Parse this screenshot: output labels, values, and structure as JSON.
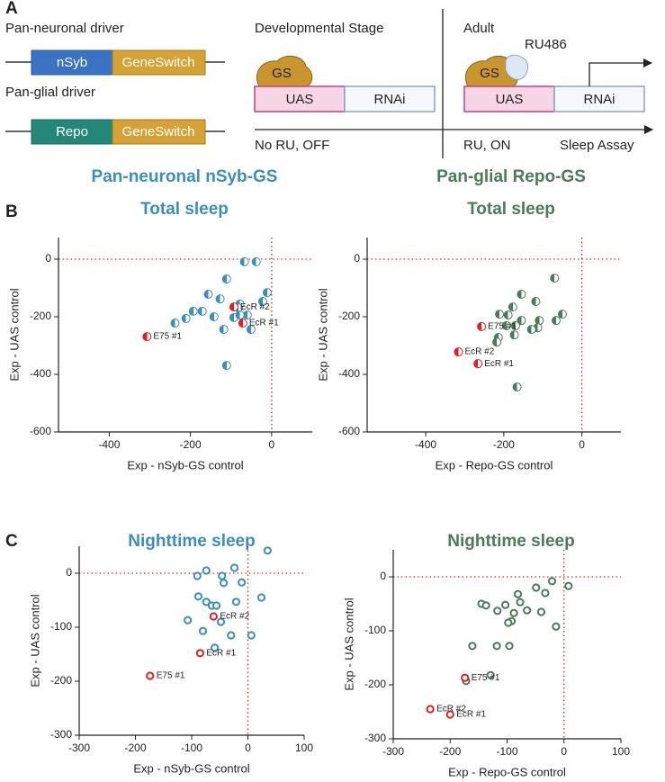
{
  "panel_labels": [
    "A",
    "B",
    "C"
  ],
  "diagram": {
    "drivers": [
      {
        "label": "Pan-neuronal driver",
        "promoter": "nSyb",
        "switch": "GeneSwitch"
      },
      {
        "label": "Pan-glial driver",
        "promoter": "Repo",
        "switch": "GeneSwitch"
      }
    ],
    "stages": [
      {
        "title": "Developmental Stage",
        "activator": "GS",
        "promoter": "UAS",
        "target": "RNAi",
        "condition": "No RU, OFF"
      },
      {
        "title": "Adult",
        "ligand": "RU486",
        "activator": "GS",
        "promoter": "UAS",
        "target": "RNAi",
        "condition": "RU, ON",
        "assay": "Sleep Assay"
      }
    ]
  },
  "column_headers": [
    "Pan-neuronal nSyb-GS",
    "Pan-glial Repo-GS"
  ],
  "chart_data": [
    {
      "type": "scatter",
      "title": "Total sleep",
      "x_label": "Exp - nSyb-GS control",
      "y_label": "Exp - UAS control",
      "xlim": [
        -525,
        100
      ],
      "ylim": [
        -600,
        75
      ],
      "xticks": [
        -400,
        -200,
        0
      ],
      "yticks": [
        0,
        -200,
        -400,
        -600
      ],
      "color": "#3b8fb8",
      "marker": "half-filled",
      "reference_x": 0,
      "reference_y": 0,
      "reference_color": "#e02020",
      "points": {
        "x": [
          -67,
          -38,
          -111,
          -156,
          -22,
          -11,
          -78,
          -127,
          -193,
          -171,
          -82,
          -60,
          -93,
          -78,
          -142,
          -211,
          -238,
          -118,
          -51,
          -111
        ],
        "y": [
          -9,
          -9,
          -69,
          -122,
          -147,
          -116,
          -156,
          -138,
          -181,
          -181,
          -169,
          -194,
          -203,
          -194,
          -200,
          -206,
          -222,
          -244,
          -244,
          -369
        ]
      },
      "highlights": {
        "color": "#e02020",
        "labels": [
          "EcR #2",
          "EcR #1",
          "E75 #1"
        ],
        "x": [
          -93,
          -71,
          -307
        ],
        "y": [
          -166,
          -222,
          -269
        ]
      }
    },
    {
      "type": "scatter",
      "title": "Total sleep",
      "x_label": "Exp - Repo-GS control",
      "y_label": "Exp - UAS control",
      "xlim": [
        -550,
        100
      ],
      "ylim": [
        -600,
        75
      ],
      "xticks": [
        -400,
        -200,
        0
      ],
      "yticks": [
        0,
        -200,
        -400,
        -600
      ],
      "color": "#4a7c59",
      "marker": "half-filled",
      "reference_x": 0,
      "reference_y": 0,
      "reference_color": "#e02020",
      "points": {
        "x": [
          -70,
          -155,
          -118,
          -50,
          -66,
          -177,
          -211,
          -189,
          -109,
          -155,
          -193,
          -170,
          -113,
          -129,
          -173,
          -214,
          -218,
          -166
        ],
        "y": [
          -66,
          -122,
          -147,
          -191,
          -213,
          -166,
          -191,
          -194,
          -213,
          -213,
          -231,
          -231,
          -238,
          -244,
          -263,
          -272,
          -288,
          -444
        ]
      },
      "highlights": {
        "color": "#e02020",
        "labels": [
          "E75 #1",
          "EcR #2",
          "EcR #1"
        ],
        "x": [
          -257,
          -316,
          -266
        ],
        "y": [
          -234,
          -322,
          -363
        ]
      }
    },
    {
      "type": "scatter",
      "title": "Nighttime sleep",
      "x_label": "Exp - nSyb-GS control",
      "y_label": "Exp - UAS control",
      "xlim": [
        -300,
        100
      ],
      "ylim": [
        -300,
        50
      ],
      "xticks": [
        -300,
        -200,
        -100,
        0,
        100
      ],
      "yticks": [
        0,
        -100,
        -200,
        -300
      ],
      "color": "#3b8fb8",
      "marker": "open",
      "reference_x": 0,
      "reference_y": 0,
      "reference_color": "#e02020",
      "points": {
        "x": [
          35,
          -24,
          -74,
          -90,
          -46,
          -11,
          -43,
          -88,
          -74,
          -64,
          -56,
          -21,
          24,
          -107,
          -48,
          -80,
          6,
          -30,
          -59
        ],
        "y": [
          42,
          10,
          5,
          -5,
          -5,
          -17,
          -18,
          -43,
          -53,
          -60,
          -60,
          -53,
          -45,
          -87,
          -90,
          -107,
          -115,
          -115,
          -138
        ]
      },
      "highlights": {
        "color": "#e02020",
        "labels": [
          "EcR #2",
          "EcR #1",
          "E75 #1"
        ],
        "x": [
          -61,
          -85,
          -174
        ],
        "y": [
          -80,
          -148,
          -190
        ]
      }
    },
    {
      "type": "scatter",
      "title": "Nighttime sleep",
      "x_label": "Exp - Repo-GS control",
      "y_label": "Exp - UAS control",
      "xlim": [
        -300,
        100
      ],
      "ylim": [
        -300,
        50
      ],
      "xticks": [
        -300,
        -200,
        -100,
        0,
        100
      ],
      "yticks": [
        0,
        -100,
        -200,
        -300
      ],
      "color": "#4a7c59",
      "marker": "open",
      "reference_x": 0,
      "reference_y": 0,
      "reference_color": "#e02020",
      "points": {
        "x": [
          -21,
          -49,
          -103,
          -145,
          -81,
          -77,
          -33,
          8,
          -40,
          -65,
          -88,
          -117,
          -92,
          -137,
          -98,
          -14,
          -118,
          -96,
          -161,
          -129,
          -172
        ],
        "y": [
          -8,
          -20,
          -52,
          -50,
          -32,
          -47,
          -30,
          -17,
          -65,
          -62,
          -67,
          -63,
          -82,
          -53,
          -85,
          -92,
          -128,
          -128,
          -128,
          -182,
          -193
        ]
      },
      "highlights": {
        "color": "#e02020",
        "labels": [
          "E75 #1",
          "EcR #2",
          "EcR #1"
        ],
        "x": [
          -174,
          -235,
          -200
        ],
        "y": [
          -187,
          -245,
          -255
        ]
      }
    }
  ]
}
